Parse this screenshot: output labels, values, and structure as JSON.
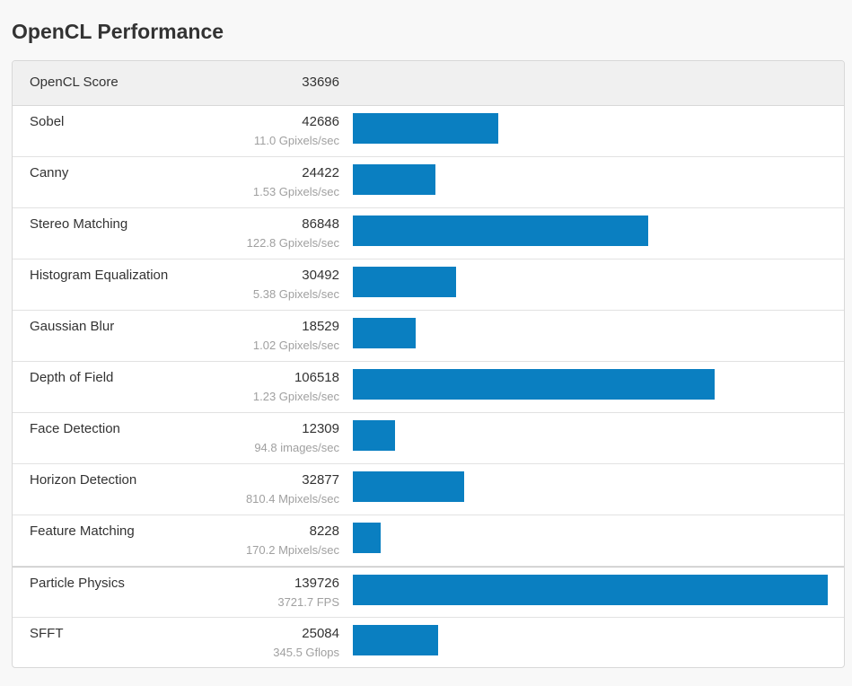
{
  "page": {
    "title": "OpenCL Performance"
  },
  "summary": {
    "label": "OpenCL Score",
    "value": "33696"
  },
  "colors": {
    "bar": "#0a7fc1"
  },
  "chart_data": {
    "type": "bar",
    "orientation": "horizontal",
    "title": "OpenCL Performance",
    "categories": [
      "Sobel",
      "Canny",
      "Stereo Matching",
      "Histogram Equalization",
      "Gaussian Blur",
      "Depth of Field",
      "Face Detection",
      "Horizon Detection",
      "Feature Matching",
      "Particle Physics",
      "SFFT"
    ],
    "values": [
      42686,
      24422,
      86848,
      30492,
      18529,
      106518,
      12309,
      32877,
      8228,
      139726,
      25084
    ],
    "max": 139726,
    "rows": [
      {
        "name": "Sobel",
        "score": "42686",
        "rate": "11.0 Gpixels/sec"
      },
      {
        "name": "Canny",
        "score": "24422",
        "rate": "1.53 Gpixels/sec"
      },
      {
        "name": "Stereo Matching",
        "score": "86848",
        "rate": "122.8 Gpixels/sec"
      },
      {
        "name": "Histogram Equalization",
        "score": "30492",
        "rate": "5.38 Gpixels/sec"
      },
      {
        "name": "Gaussian Blur",
        "score": "18529",
        "rate": "1.02 Gpixels/sec"
      },
      {
        "name": "Depth of Field",
        "score": "106518",
        "rate": "1.23 Gpixels/sec"
      },
      {
        "name": "Face Detection",
        "score": "12309",
        "rate": "94.8 images/sec"
      },
      {
        "name": "Horizon Detection",
        "score": "32877",
        "rate": "810.4 Mpixels/sec"
      },
      {
        "name": "Feature Matching",
        "score": "8228",
        "rate": "170.2 Mpixels/sec"
      },
      {
        "name": "Particle Physics",
        "score": "139726",
        "rate": "3721.7 FPS"
      },
      {
        "name": "SFFT",
        "score": "25084",
        "rate": "345.5 Gflops"
      }
    ]
  }
}
